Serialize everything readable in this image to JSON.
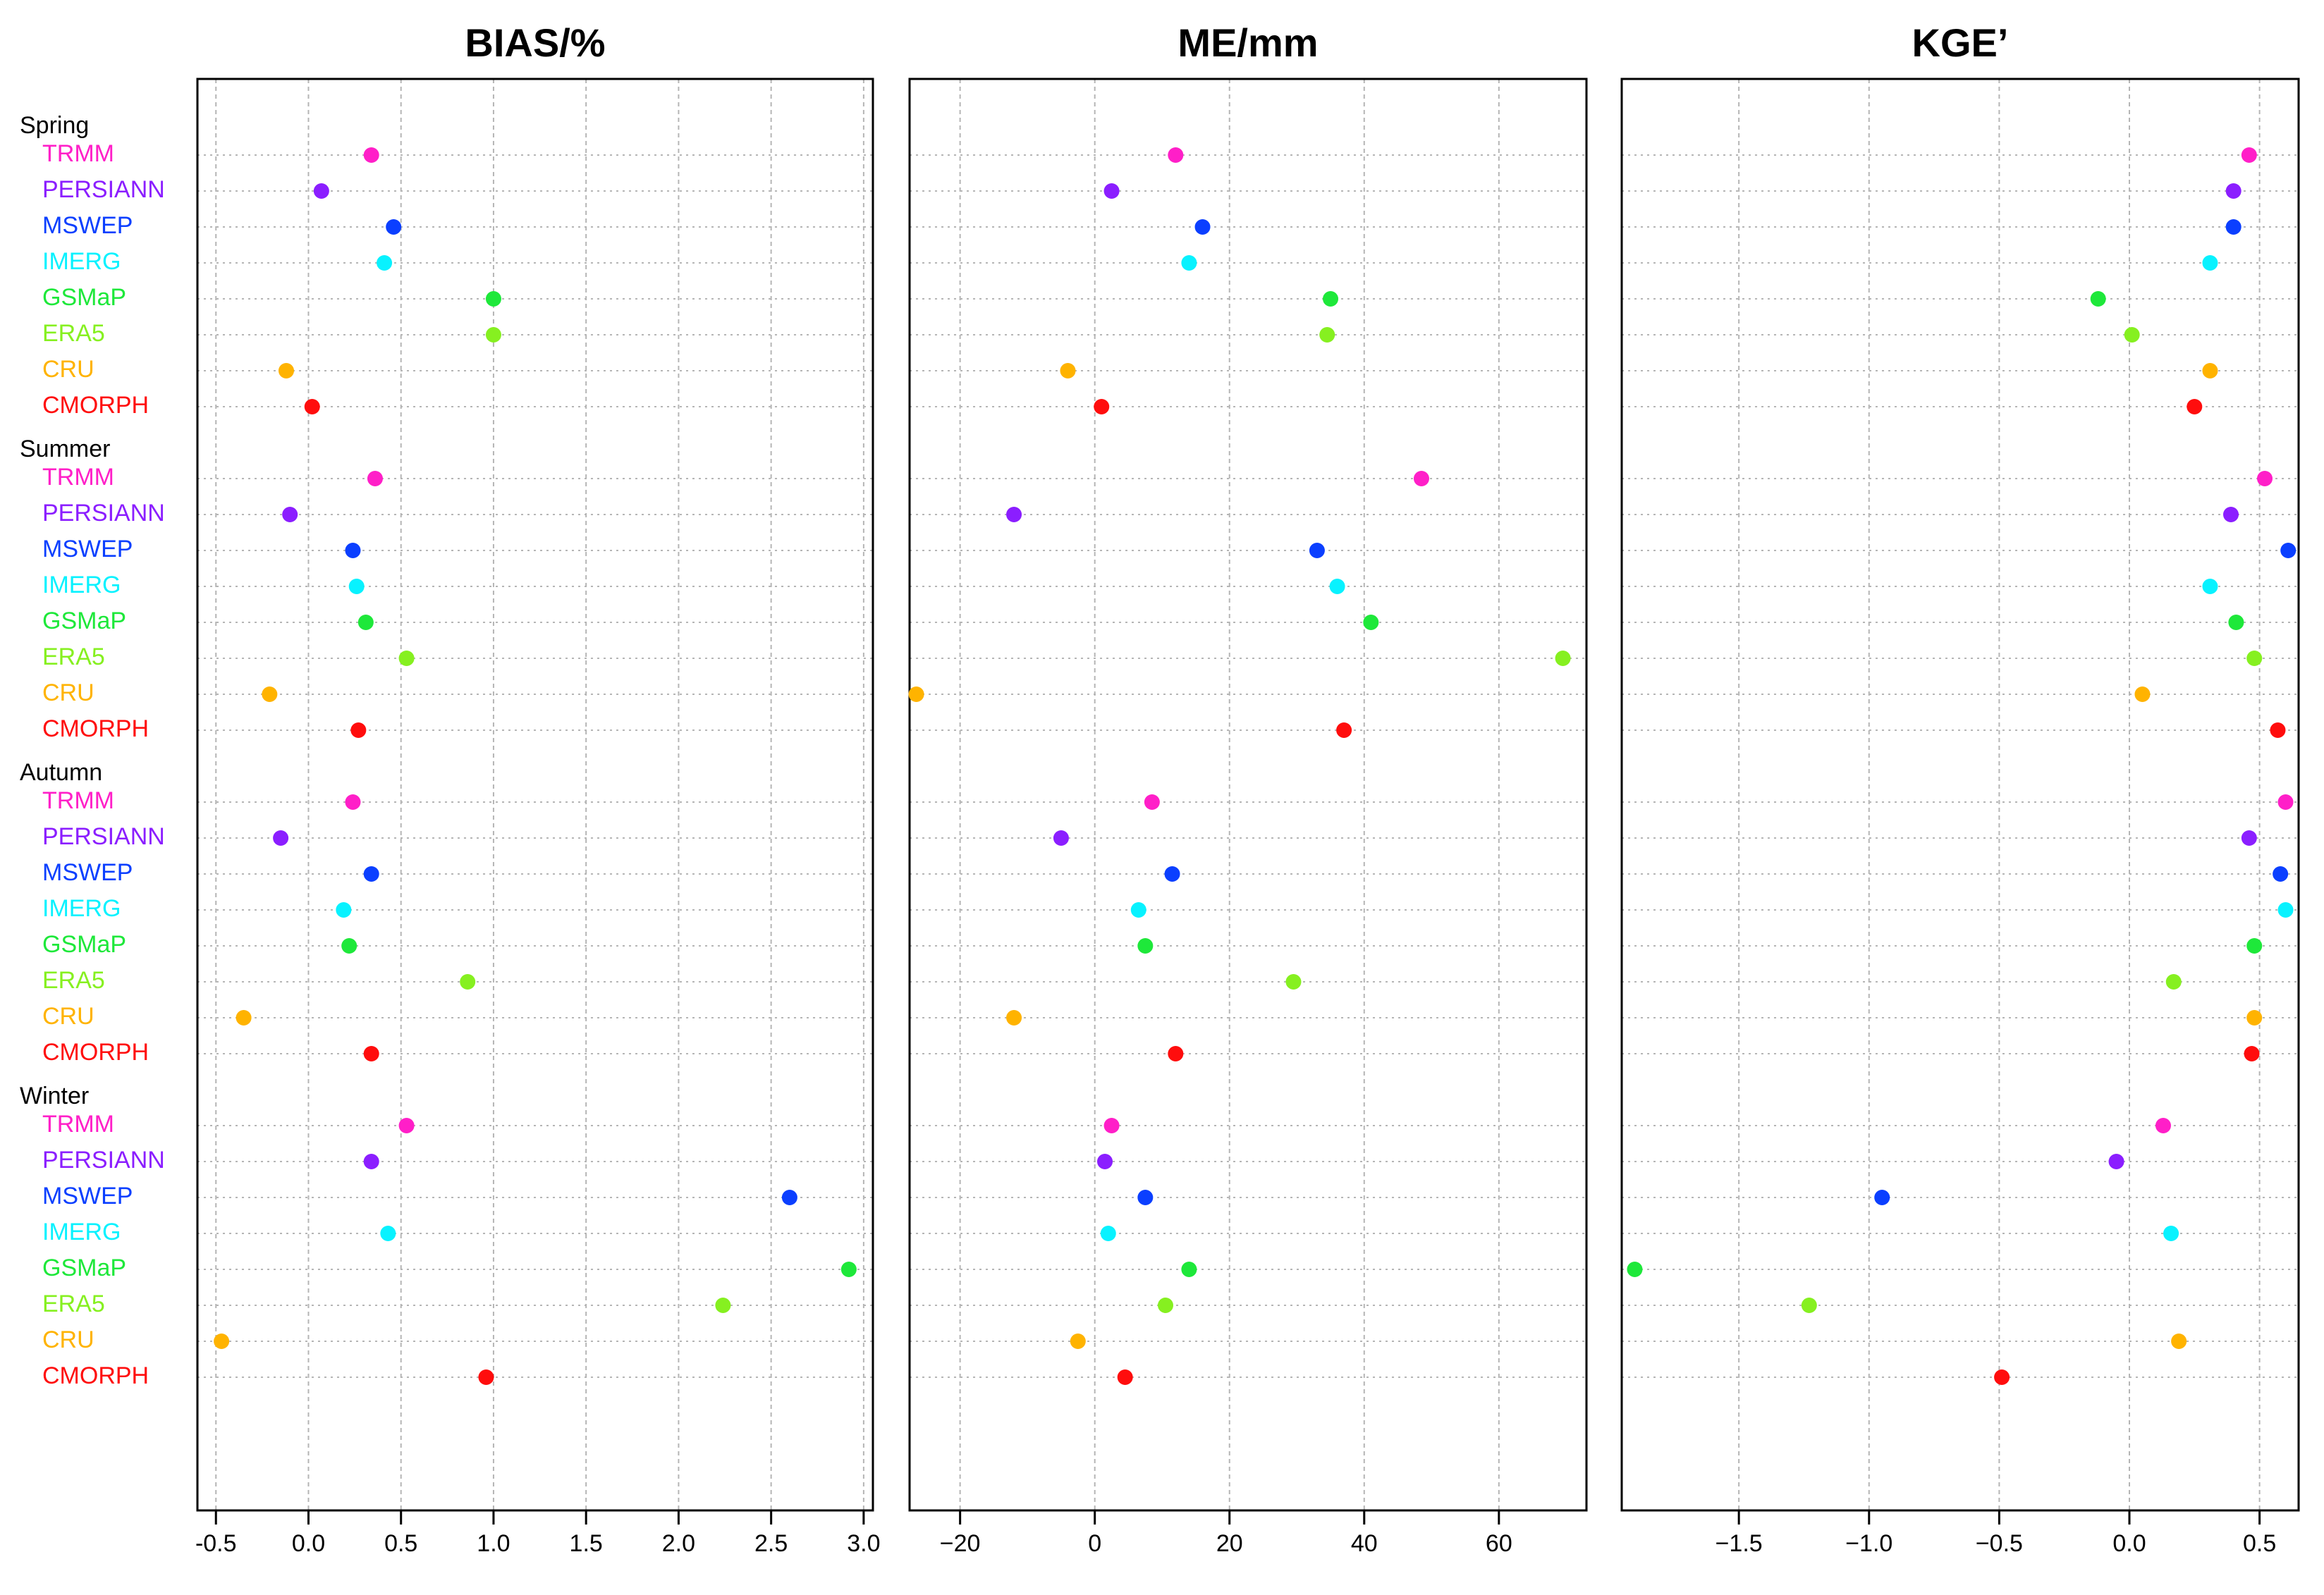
{
  "chart_data": [
    {
      "type": "scatter",
      "title": "BIAS/%",
      "xlim": [
        -0.6,
        3.05
      ],
      "xticks": [
        -0.5,
        0.0,
        0.5,
        1.0,
        1.5,
        2.0,
        2.5,
        3.0
      ],
      "xtick_labels": [
        "-0.5",
        "0.0",
        "0.5",
        "1.0",
        "1.5",
        "2.0",
        "2.5",
        "3.0"
      ],
      "grid": true,
      "groups": [
        {
          "season": "Spring",
          "values": [
            0.34,
            0.07,
            0.46,
            0.41,
            1.0,
            1.0,
            -0.12,
            0.02
          ]
        },
        {
          "season": "Summer",
          "values": [
            0.36,
            -0.1,
            0.24,
            0.26,
            0.31,
            0.53,
            -0.21,
            0.27
          ]
        },
        {
          "season": "Autumn",
          "values": [
            0.24,
            -0.15,
            0.34,
            0.19,
            0.22,
            0.86,
            -0.35,
            0.34
          ]
        },
        {
          "season": "Winter",
          "values": [
            0.53,
            0.34,
            2.6,
            0.43,
            2.92,
            2.24,
            -0.47,
            0.96
          ]
        }
      ]
    },
    {
      "type": "scatter",
      "title": "ME/mm",
      "xlim": [
        -27.5,
        73
      ],
      "xticks": [
        -20,
        0,
        20,
        40,
        60
      ],
      "xtick_labels": [
        "−20",
        "0",
        "20",
        "40",
        "60"
      ],
      "grid": true,
      "groups": [
        {
          "season": "Spring",
          "values": [
            12,
            2.5,
            16,
            14,
            35,
            34.5,
            -4,
            1
          ]
        },
        {
          "season": "Summer",
          "values": [
            48.5,
            -12,
            33,
            36,
            41,
            69.5,
            -26.5,
            37
          ]
        },
        {
          "season": "Autumn",
          "values": [
            8.5,
            -5,
            11.5,
            6.5,
            7.5,
            29.5,
            -12,
            12
          ]
        },
        {
          "season": "Winter",
          "values": [
            2.5,
            1.5,
            7.5,
            2,
            14,
            10.5,
            -2.5,
            4.5
          ]
        }
      ]
    },
    {
      "type": "scatter",
      "title": "KGE’",
      "xlim": [
        -1.95,
        0.65
      ],
      "xticks": [
        -1.5,
        -1.0,
        -0.5,
        0.0,
        0.5
      ],
      "xtick_labels": [
        "−1.5",
        "−1.0",
        "−0.5",
        "0.0",
        "0.5"
      ],
      "grid": true,
      "groups": [
        {
          "season": "Spring",
          "values": [
            0.46,
            0.4,
            0.4,
            0.31,
            -0.12,
            0.01,
            0.31,
            0.25
          ]
        },
        {
          "season": "Summer",
          "values": [
            0.52,
            0.39,
            0.61,
            0.31,
            0.41,
            0.48,
            0.05,
            0.57
          ]
        },
        {
          "season": "Autumn",
          "values": [
            0.6,
            0.46,
            0.58,
            0.6,
            0.48,
            0.17,
            0.48,
            0.47
          ]
        },
        {
          "season": "Winter",
          "values": [
            0.13,
            -0.05,
            -0.95,
            0.16,
            -1.9,
            -1.23,
            0.19,
            -0.49
          ]
        }
      ]
    }
  ],
  "seasons": [
    "Spring",
    "Summer",
    "Autumn",
    "Winter"
  ],
  "products": [
    "TRMM",
    "PERSIANN",
    "MSWEP",
    "IMERG",
    "GSMaP",
    "ERA5",
    "CRU",
    "CMORPH"
  ],
  "product_colors": [
    "#ff1fc8",
    "#8b1eff",
    "#0b3fff",
    "#08f2ff",
    "#1ee83a",
    "#86f020",
    "#ffb300",
    "#ff0d0d"
  ]
}
